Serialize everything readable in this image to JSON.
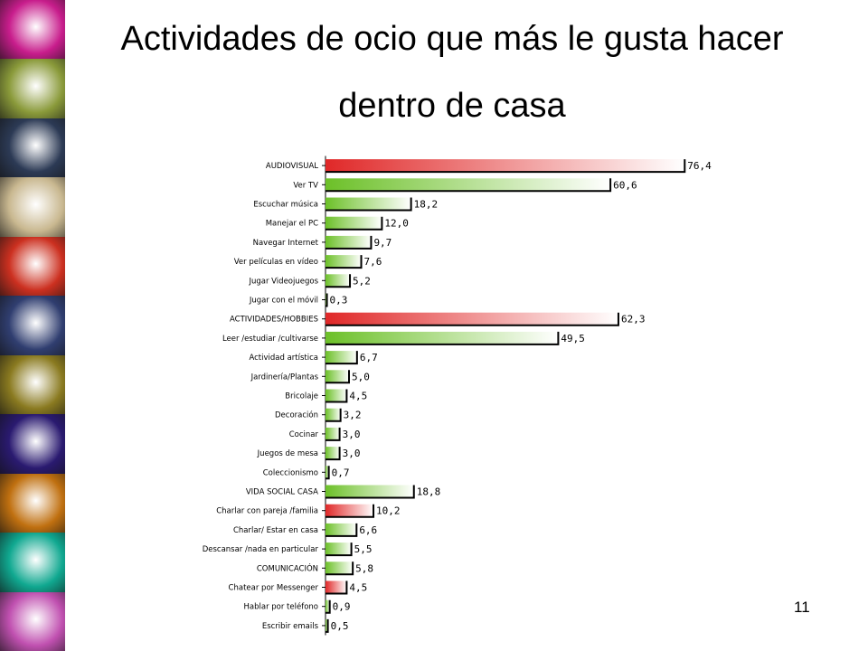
{
  "slide": {
    "title_line1": "Actividades de ocio que más le gusta hacer",
    "title_line2": "dentro de casa",
    "page_number": "11"
  },
  "decoration": {
    "photo_tiles": [
      "#c81d8c",
      "#8a9a3a",
      "#2c3a55",
      "#c9b890",
      "#cc3020",
      "#303e70",
      "#8a7a20",
      "#2a1a70",
      "#c07010",
      "#10a890",
      "#c050b0"
    ]
  },
  "chart_data": {
    "type": "bar",
    "orientation": "horizontal",
    "categories": [
      "AUDIOVISUAL",
      "Ver TV",
      "Escuchar música",
      "Manejar el PC",
      "Navegar  Internet",
      "Ver películas en vídeo",
      "Jugar Videojuegos",
      "Jugar con el móvil",
      "ACTIVIDADES/HOBBIES",
      "Leer /estudiar /cultivarse",
      "Actividad artística",
      "Jardinería/Plantas",
      "Bricolaje",
      "Decoración",
      "Cocinar",
      "Juegos de mesa",
      "Coleccionismo",
      "VIDA SOCIAL CASA",
      "Charlar con pareja /familia",
      "Charlar/ Estar en casa",
      "Descansar /nada en particular",
      "COMUNICACIÓN",
      "Chatear por Messenger",
      "Hablar por teléfono",
      "Escribir emails"
    ],
    "values": [
      76.4,
      60.6,
      18.2,
      12.0,
      9.7,
      7.6,
      5.2,
      0.3,
      62.3,
      49.5,
      6.7,
      5.0,
      4.5,
      3.2,
      3.0,
      3.0,
      0.7,
      18.8,
      10.2,
      6.6,
      5.5,
      5.8,
      4.5,
      0.9,
      0.5
    ],
    "value_labels": [
      "76,4",
      "60,6",
      "18,2",
      "12,0",
      "9,7",
      "7,6",
      "5,2",
      "0,3",
      "62,3",
      "49,5",
      "6,7",
      "5,0",
      "4,5",
      "3,2",
      "3,0",
      "3,0",
      "0,7",
      "18,8",
      "10,2",
      "6,6",
      "5,5",
      "5,8",
      "4,5",
      "0,9",
      "0,5"
    ],
    "bar_colors": [
      "red",
      "green",
      "green",
      "green",
      "green",
      "green",
      "green",
      "green",
      "red",
      "green",
      "green",
      "green",
      "green",
      "green",
      "green",
      "green",
      "green",
      "green",
      "red",
      "green",
      "green",
      "green",
      "red",
      "green",
      "green"
    ],
    "colors": {
      "red": "#e02828",
      "green": "#6cc028"
    },
    "xlim": [
      0,
      80
    ],
    "grid": false,
    "legend": "none"
  }
}
